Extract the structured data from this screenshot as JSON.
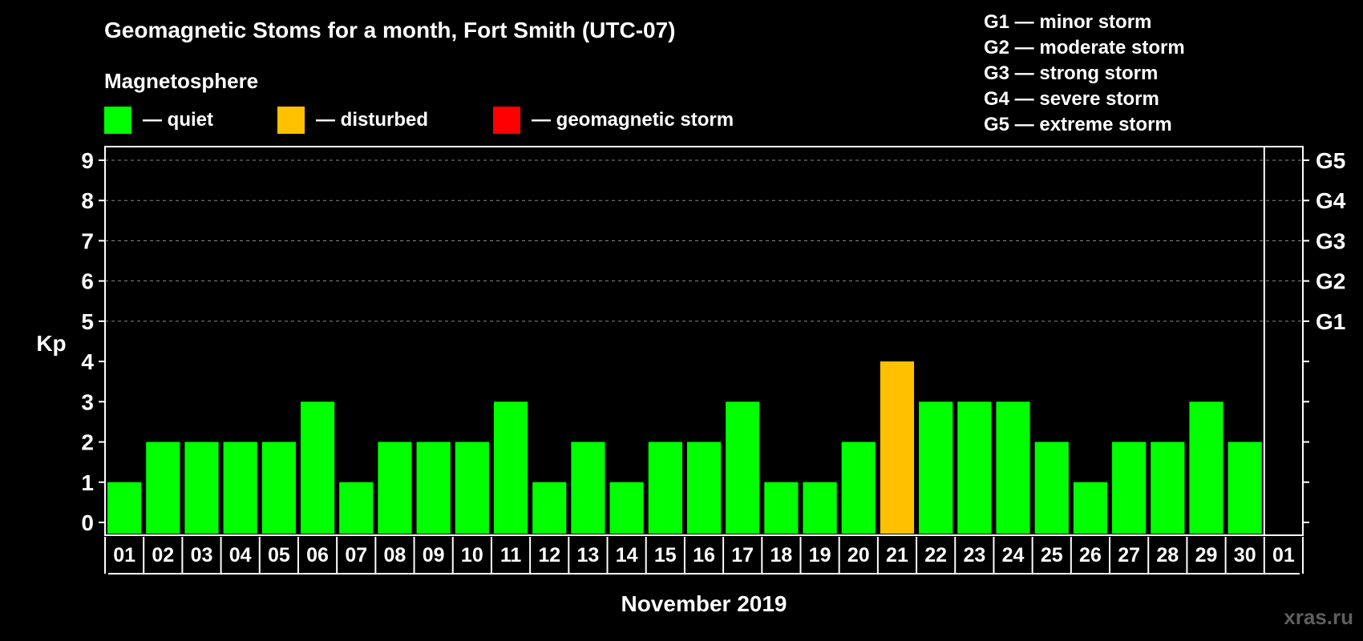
{
  "chart_data": {
    "type": "bar",
    "title": "Geomagnetic Stoms for a month, Fort Smith (UTC-07)",
    "subtitle": "Magnetosphere",
    "ylabel": "Kp",
    "xlabel": "November 2019",
    "ylim": [
      0,
      9
    ],
    "yticks": [
      "0",
      "1",
      "2",
      "3",
      "4",
      "5",
      "6",
      "7",
      "8",
      "9"
    ],
    "right_ticks": [
      {
        "kp": 5,
        "label": "G1"
      },
      {
        "kp": 6,
        "label": "G2"
      },
      {
        "kp": 7,
        "label": "G3"
      },
      {
        "kp": 8,
        "label": "G4"
      },
      {
        "kp": 9,
        "label": "G5"
      }
    ],
    "categories": [
      "01",
      "02",
      "03",
      "04",
      "05",
      "06",
      "07",
      "08",
      "09",
      "10",
      "11",
      "12",
      "13",
      "14",
      "15",
      "16",
      "17",
      "18",
      "19",
      "20",
      "21",
      "22",
      "23",
      "24",
      "25",
      "26",
      "27",
      "28",
      "29",
      "30",
      "01"
    ],
    "values": [
      1,
      2,
      2,
      2,
      2,
      3,
      1,
      2,
      2,
      2,
      3,
      1,
      2,
      1,
      2,
      2,
      3,
      1,
      1,
      2,
      4,
      3,
      3,
      3,
      2,
      1,
      2,
      2,
      3,
      2,
      null
    ],
    "status": [
      "quiet",
      "quiet",
      "quiet",
      "quiet",
      "quiet",
      "quiet",
      "quiet",
      "quiet",
      "quiet",
      "quiet",
      "quiet",
      "quiet",
      "quiet",
      "quiet",
      "quiet",
      "quiet",
      "quiet",
      "quiet",
      "quiet",
      "quiet",
      "disturbed",
      "quiet",
      "quiet",
      "quiet",
      "quiet",
      "quiet",
      "quiet",
      "quiet",
      "quiet",
      "quiet",
      null
    ],
    "grid": true,
    "legend": [
      {
        "key": "quiet",
        "label": "— quiet",
        "color": "#00ff00"
      },
      {
        "key": "disturbed",
        "label": "— disturbed",
        "color": "#ffc000"
      },
      {
        "key": "storm",
        "label": "— geomagnetic storm",
        "color": "#ff0000"
      }
    ],
    "scale_legend": [
      "G1 — minor storm",
      "G2 — moderate storm",
      "G3 — strong storm",
      "G4 — severe storm",
      "G5 — extreme storm"
    ]
  },
  "watermark": "xras.ru",
  "colors": {
    "background": "#000000",
    "grid": "#888888",
    "axis": "#ffffff"
  }
}
